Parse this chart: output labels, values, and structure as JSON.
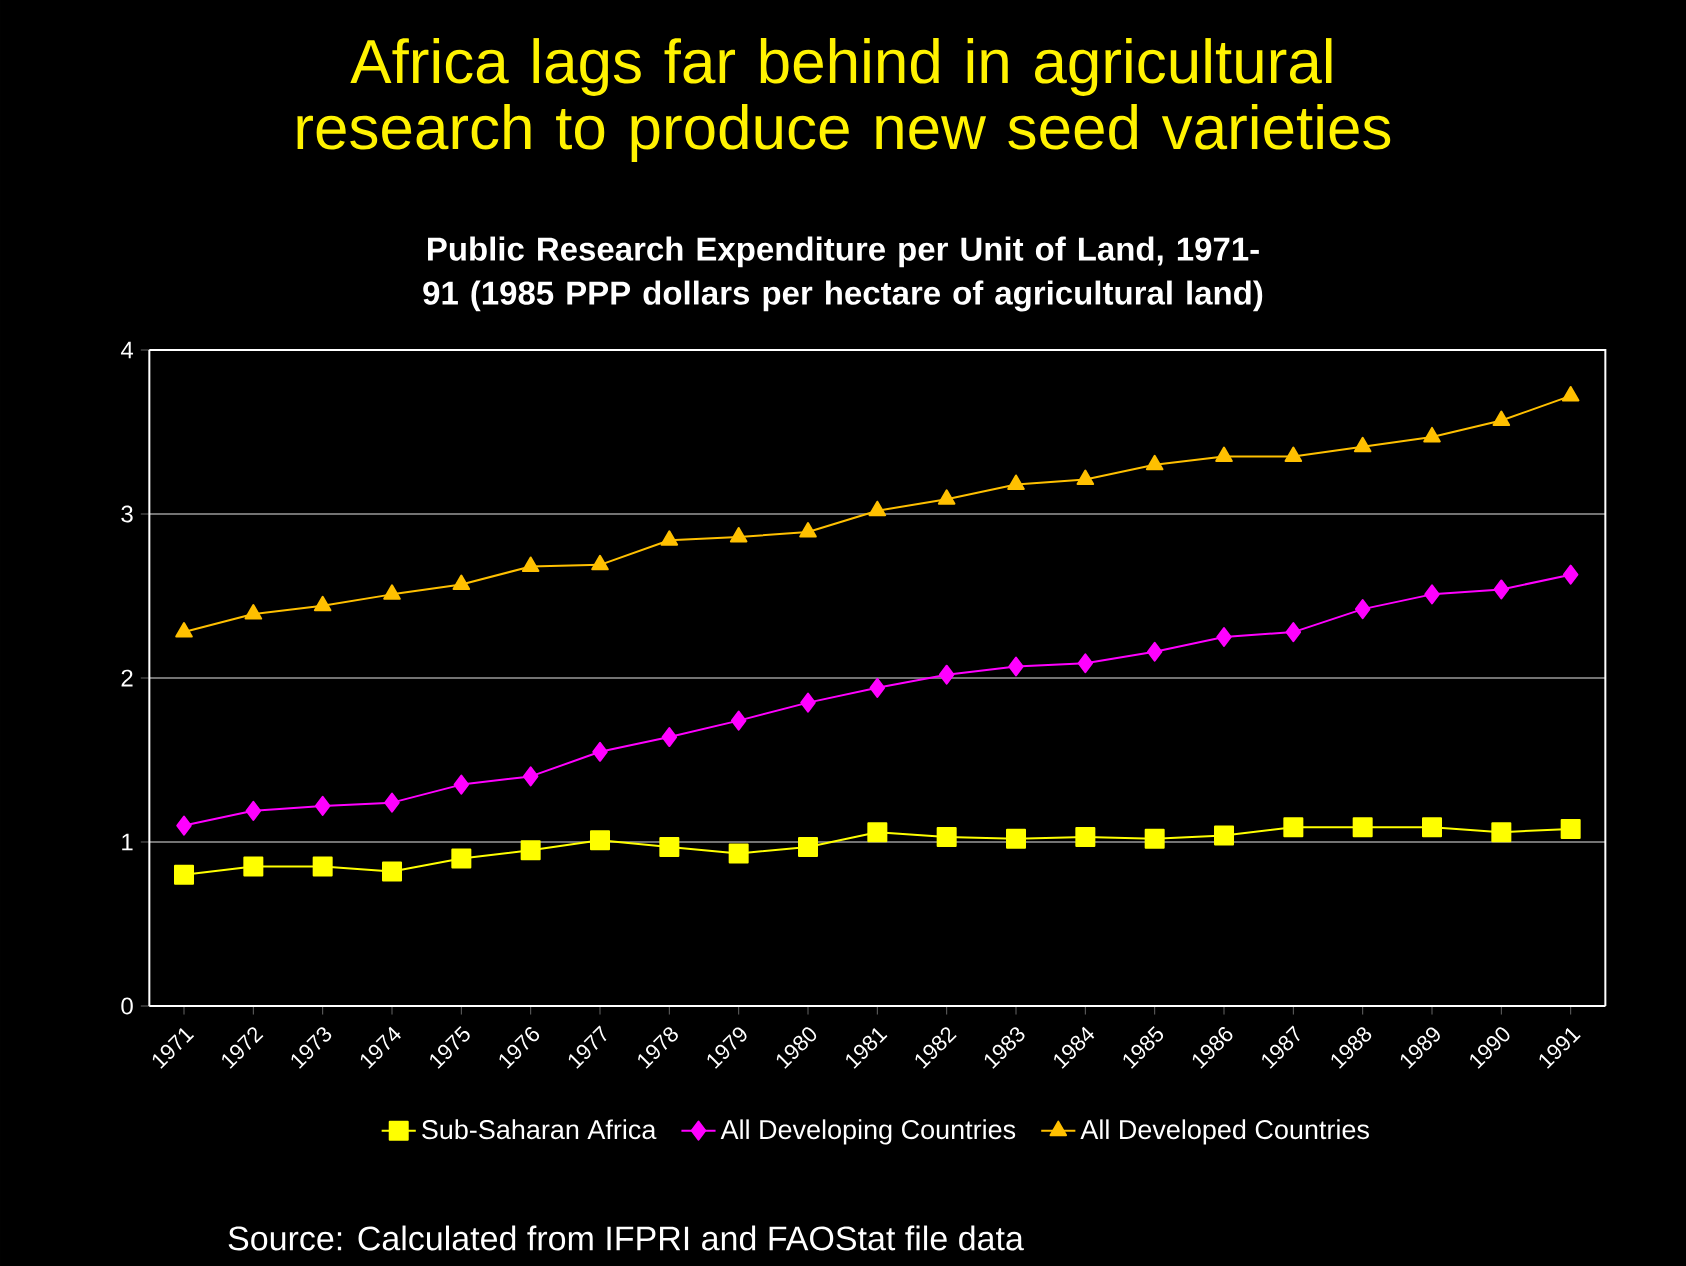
{
  "chart_data": {
    "type": "line",
    "title": "Africa lags far behind in agricultural research to produce new seed varieties",
    "subtitle": "Public Research Expenditure per Unit of Land, 1971-91 (1985 PPP dollars per hectare of agricultural land)",
    "categories": [
      "1971",
      "1972",
      "1973",
      "1974",
      "1975",
      "1976",
      "1977",
      "1978",
      "1979",
      "1980",
      "1981",
      "1982",
      "1983",
      "1984",
      "1985",
      "1986",
      "1987",
      "1988",
      "1989",
      "1990",
      "1991"
    ],
    "series": [
      {
        "name": "Sub-Saharan Africa",
        "color": "#ffff00",
        "marker": "square",
        "values": [
          0.8,
          0.85,
          0.85,
          0.82,
          0.9,
          0.95,
          1.01,
          0.97,
          0.93,
          0.97,
          1.06,
          1.03,
          1.02,
          1.03,
          1.02,
          1.04,
          1.09,
          1.09,
          1.09,
          1.06,
          1.08
        ]
      },
      {
        "name": "All Developing Countries",
        "color": "#ff00ff",
        "marker": "diamond",
        "values": [
          1.1,
          1.19,
          1.22,
          1.24,
          1.35,
          1.4,
          1.55,
          1.64,
          1.74,
          1.85,
          1.94,
          2.02,
          2.07,
          2.09,
          2.16,
          2.25,
          2.28,
          2.42,
          2.51,
          2.54,
          2.63
        ]
      },
      {
        "name": "All Developed Countries",
        "color": "#ffc000",
        "marker": "triangle",
        "values": [
          2.28,
          2.39,
          2.44,
          2.51,
          2.57,
          2.68,
          2.69,
          2.84,
          2.86,
          2.89,
          3.02,
          3.09,
          3.18,
          3.21,
          3.3,
          3.35,
          3.35,
          3.41,
          3.47,
          3.57,
          3.72
        ]
      }
    ],
    "ylim": [
      0,
      4
    ],
    "yticks": [
      0,
      1,
      2,
      3,
      4
    ],
    "grid": "y",
    "legend": "bottom",
    "annotations": [
      "Source:  Calculated from IFPRI and FAOStat file data"
    ]
  }
}
